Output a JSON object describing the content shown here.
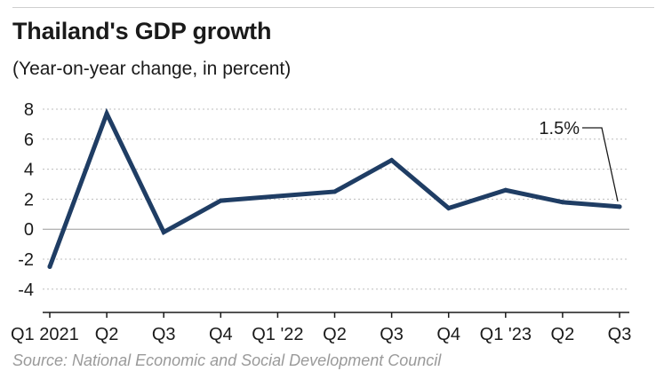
{
  "header": {
    "title": "Thailand's GDP growth",
    "subtitle": "(Year-on-year change, in percent)"
  },
  "footer": {
    "source": "Source: National Economic and Social Development Council"
  },
  "chart_data": {
    "type": "line",
    "title": "Thailand's GDP growth",
    "subtitle": "(Year-on-year change, in percent)",
    "xlabel": "",
    "ylabel": "",
    "ylim": [
      -6,
      8
    ],
    "yticks": [
      8,
      6,
      4,
      2,
      0,
      -2,
      -4
    ],
    "grid": true,
    "categories": [
      "Q1 2021",
      "Q2",
      "Q3",
      "Q4",
      "Q1 '22",
      "Q2",
      "Q3",
      "Q4",
      "Q1 '23",
      "Q2",
      "Q3"
    ],
    "series": [
      {
        "name": "",
        "color": "#1f3d64",
        "values": [
          -2.5,
          7.7,
          -0.2,
          1.9,
          2.2,
          2.5,
          4.6,
          1.4,
          2.6,
          1.8,
          1.5
        ]
      }
    ],
    "annotations": [
      {
        "label": "1.5%",
        "index": 10
      }
    ]
  },
  "colors": {
    "line": "#1f3d64",
    "grid": "#bdbdbd",
    "source_text": "#9a9a9a"
  }
}
